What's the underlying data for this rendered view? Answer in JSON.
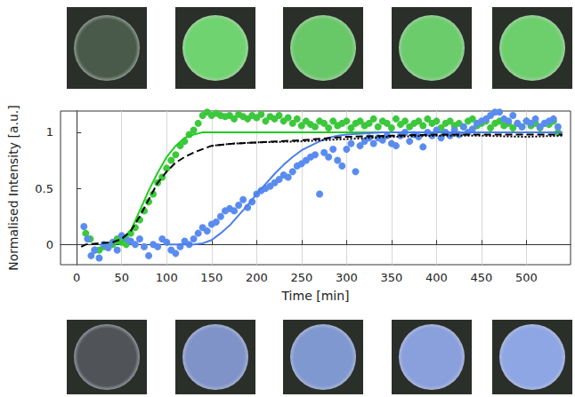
{
  "chart_data": {
    "type": "scatter",
    "x_label": "Time [min]",
    "y_label": "Normalised Intensity [a.u.]",
    "xlim": [
      -18,
      549
    ],
    "ylim": [
      -0.18,
      1.19
    ],
    "xticks": [
      0,
      50,
      100,
      150,
      200,
      250,
      300,
      350,
      400,
      450,
      500
    ],
    "yticks": [
      0,
      0.5,
      1
    ],
    "grid": true,
    "series": [
      {
        "type": "scatter",
        "marker": "circle",
        "color": "#3cc83c",
        "x": [
          10,
          15,
          20,
          25,
          30,
          35,
          40,
          45,
          50,
          55,
          60,
          65,
          70,
          75,
          80,
          85,
          90,
          95,
          100,
          105,
          110,
          115,
          120,
          125,
          130,
          135,
          140,
          145,
          150,
          155,
          160,
          165,
          170,
          175,
          180,
          185,
          190,
          195,
          200,
          205,
          210,
          215,
          220,
          225,
          230,
          235,
          240,
          245,
          250,
          255,
          260,
          265,
          270,
          275,
          280,
          285,
          290,
          295,
          300,
          305,
          310,
          315,
          320,
          325,
          330,
          335,
          340,
          345,
          350,
          355,
          360,
          365,
          370,
          375,
          380,
          385,
          390,
          395,
          400,
          405,
          410,
          415,
          420,
          425,
          430,
          435,
          440,
          445,
          450,
          455,
          460,
          465,
          470,
          475,
          480,
          485,
          490,
          495,
          500,
          505,
          510,
          515,
          520,
          525,
          530,
          535
        ],
        "values": [
          0.1,
          0.05,
          -0.05,
          -0.05,
          -0.02,
          -0.02,
          0.0,
          0.05,
          0.02,
          0.0,
          0.1,
          0.15,
          0.22,
          0.3,
          0.38,
          0.45,
          0.55,
          0.6,
          0.68,
          0.75,
          0.8,
          0.88,
          0.92,
          0.98,
          1.02,
          1.08,
          1.15,
          1.18,
          1.15,
          1.17,
          1.15,
          1.14,
          1.15,
          1.12,
          1.16,
          1.14,
          1.12,
          1.15,
          1.13,
          1.16,
          1.1,
          1.14,
          1.12,
          1.15,
          1.1,
          1.13,
          1.08,
          1.12,
          1.06,
          1.1,
          1.07,
          1.05,
          1.1,
          1.08,
          1.04,
          1.1,
          1.06,
          1.08,
          1.1,
          1.04,
          1.08,
          1.1,
          1.06,
          1.08,
          1.12,
          1.05,
          1.1,
          1.08,
          1.04,
          1.12,
          1.07,
          1.1,
          1.05,
          1.08,
          1.1,
          1.06,
          1.12,
          1.08,
          1.1,
          1.04,
          1.08,
          1.1,
          1.06,
          1.08,
          1.05,
          1.1,
          1.12,
          1.06,
          1.08,
          1.1,
          1.04,
          1.08,
          1.1,
          1.06,
          1.08,
          1.04,
          1.08,
          1.05,
          1.1,
          1.06,
          1.08,
          1.04,
          1.08,
          1.07,
          1.1,
          1.0
        ]
      },
      {
        "type": "line",
        "line_style": "solid",
        "color": "#22cc22",
        "x": [
          40,
          50,
          60,
          70,
          80,
          90,
          100,
          110,
          120,
          130,
          140,
          150,
          540
        ],
        "values": [
          0,
          0.02,
          0.12,
          0.3,
          0.48,
          0.64,
          0.78,
          0.88,
          0.95,
          0.98,
          1.0,
          1.0,
          1.0
        ]
      },
      {
        "type": "scatter",
        "marker": "circle",
        "color": "#5a8cf0",
        "x": [
          8,
          12,
          16,
          20,
          25,
          30,
          35,
          40,
          45,
          50,
          55,
          60,
          65,
          70,
          75,
          80,
          85,
          90,
          95,
          100,
          105,
          110,
          115,
          120,
          125,
          130,
          135,
          140,
          145,
          150,
          155,
          160,
          165,
          170,
          175,
          180,
          185,
          190,
          195,
          200,
          205,
          210,
          215,
          220,
          225,
          230,
          235,
          240,
          245,
          250,
          255,
          260,
          265,
          270,
          275,
          280,
          285,
          290,
          295,
          300,
          305,
          310,
          315,
          320,
          325,
          330,
          335,
          340,
          345,
          350,
          355,
          360,
          365,
          370,
          375,
          380,
          385,
          390,
          395,
          400,
          405,
          410,
          415,
          420,
          425,
          430,
          435,
          440,
          445,
          450,
          455,
          460,
          465,
          470,
          475,
          480,
          485,
          490,
          495,
          500,
          505,
          510,
          515,
          520,
          525,
          530,
          535
        ],
        "values": [
          0.16,
          0.05,
          -0.1,
          -0.05,
          -0.12,
          0.0,
          -0.03,
          0.02,
          -0.05,
          0.08,
          0.05,
          0.03,
          0.0,
          0.05,
          -0.02,
          -0.1,
          0.0,
          -0.02,
          0.05,
          0.02,
          -0.05,
          -0.08,
          -0.02,
          0.03,
          0.0,
          0.05,
          0.1,
          0.15,
          0.12,
          0.18,
          0.2,
          0.25,
          0.3,
          0.32,
          0.3,
          0.35,
          0.4,
          0.33,
          0.38,
          0.45,
          0.48,
          0.5,
          0.52,
          0.55,
          0.58,
          0.62,
          0.6,
          0.65,
          0.7,
          0.72,
          0.75,
          0.78,
          0.8,
          0.45,
          0.82,
          0.78,
          0.85,
          0.75,
          0.7,
          0.85,
          0.9,
          0.65,
          0.88,
          0.92,
          0.95,
          0.9,
          0.95,
          0.93,
          0.97,
          0.9,
          0.88,
          0.97,
          1.0,
          0.92,
          0.98,
          0.96,
          0.87,
          1.0,
          0.97,
          1.02,
          0.95,
          1.0,
          0.97,
          1.02,
          0.98,
          1.05,
          1.0,
          1.03,
          1.08,
          1.1,
          1.12,
          1.15,
          1.18,
          1.18,
          1.12,
          1.1,
          1.15,
          1.08,
          1.05,
          1.1,
          1.08,
          1.12,
          1.05,
          1.08,
          1.1,
          1.12,
          1.05
        ]
      },
      {
        "type": "line",
        "line_style": "solid",
        "color": "#4a7ee8",
        "x": [
          100,
          130,
          140,
          150,
          160,
          170,
          180,
          190,
          200,
          210,
          220,
          230,
          240,
          250,
          260,
          270,
          280,
          290,
          300,
          320,
          340,
          540
        ],
        "values": [
          0,
          0,
          0.01,
          0.04,
          0.1,
          0.17,
          0.26,
          0.35,
          0.45,
          0.54,
          0.63,
          0.71,
          0.78,
          0.84,
          0.88,
          0.92,
          0.95,
          0.97,
          0.98,
          0.99,
          1.0,
          1.0
        ]
      },
      {
        "type": "line",
        "line_style": "dashed",
        "color": "#000000",
        "x": [
          5,
          10,
          40,
          50,
          60,
          70,
          80,
          90,
          100,
          110,
          120,
          130,
          140,
          150,
          175,
          200,
          250,
          300,
          350,
          400,
          500,
          540
        ],
        "values": [
          -0.02,
          0,
          0.02,
          0.05,
          0.12,
          0.25,
          0.4,
          0.55,
          0.65,
          0.73,
          0.78,
          0.82,
          0.85,
          0.88,
          0.9,
          0.91,
          0.93,
          0.96,
          0.97,
          0.98,
          0.98,
          0.98
        ]
      },
      {
        "type": "line",
        "line_style": "dotted",
        "color": "#000000",
        "x": [
          150,
          175,
          200,
          250,
          300,
          350,
          400,
          450,
          500,
          540
        ],
        "values": [
          0.88,
          0.9,
          0.91,
          0.92,
          0.94,
          0.96,
          0.97,
          0.97,
          0.96,
          0.97
        ]
      }
    ]
  }
}
